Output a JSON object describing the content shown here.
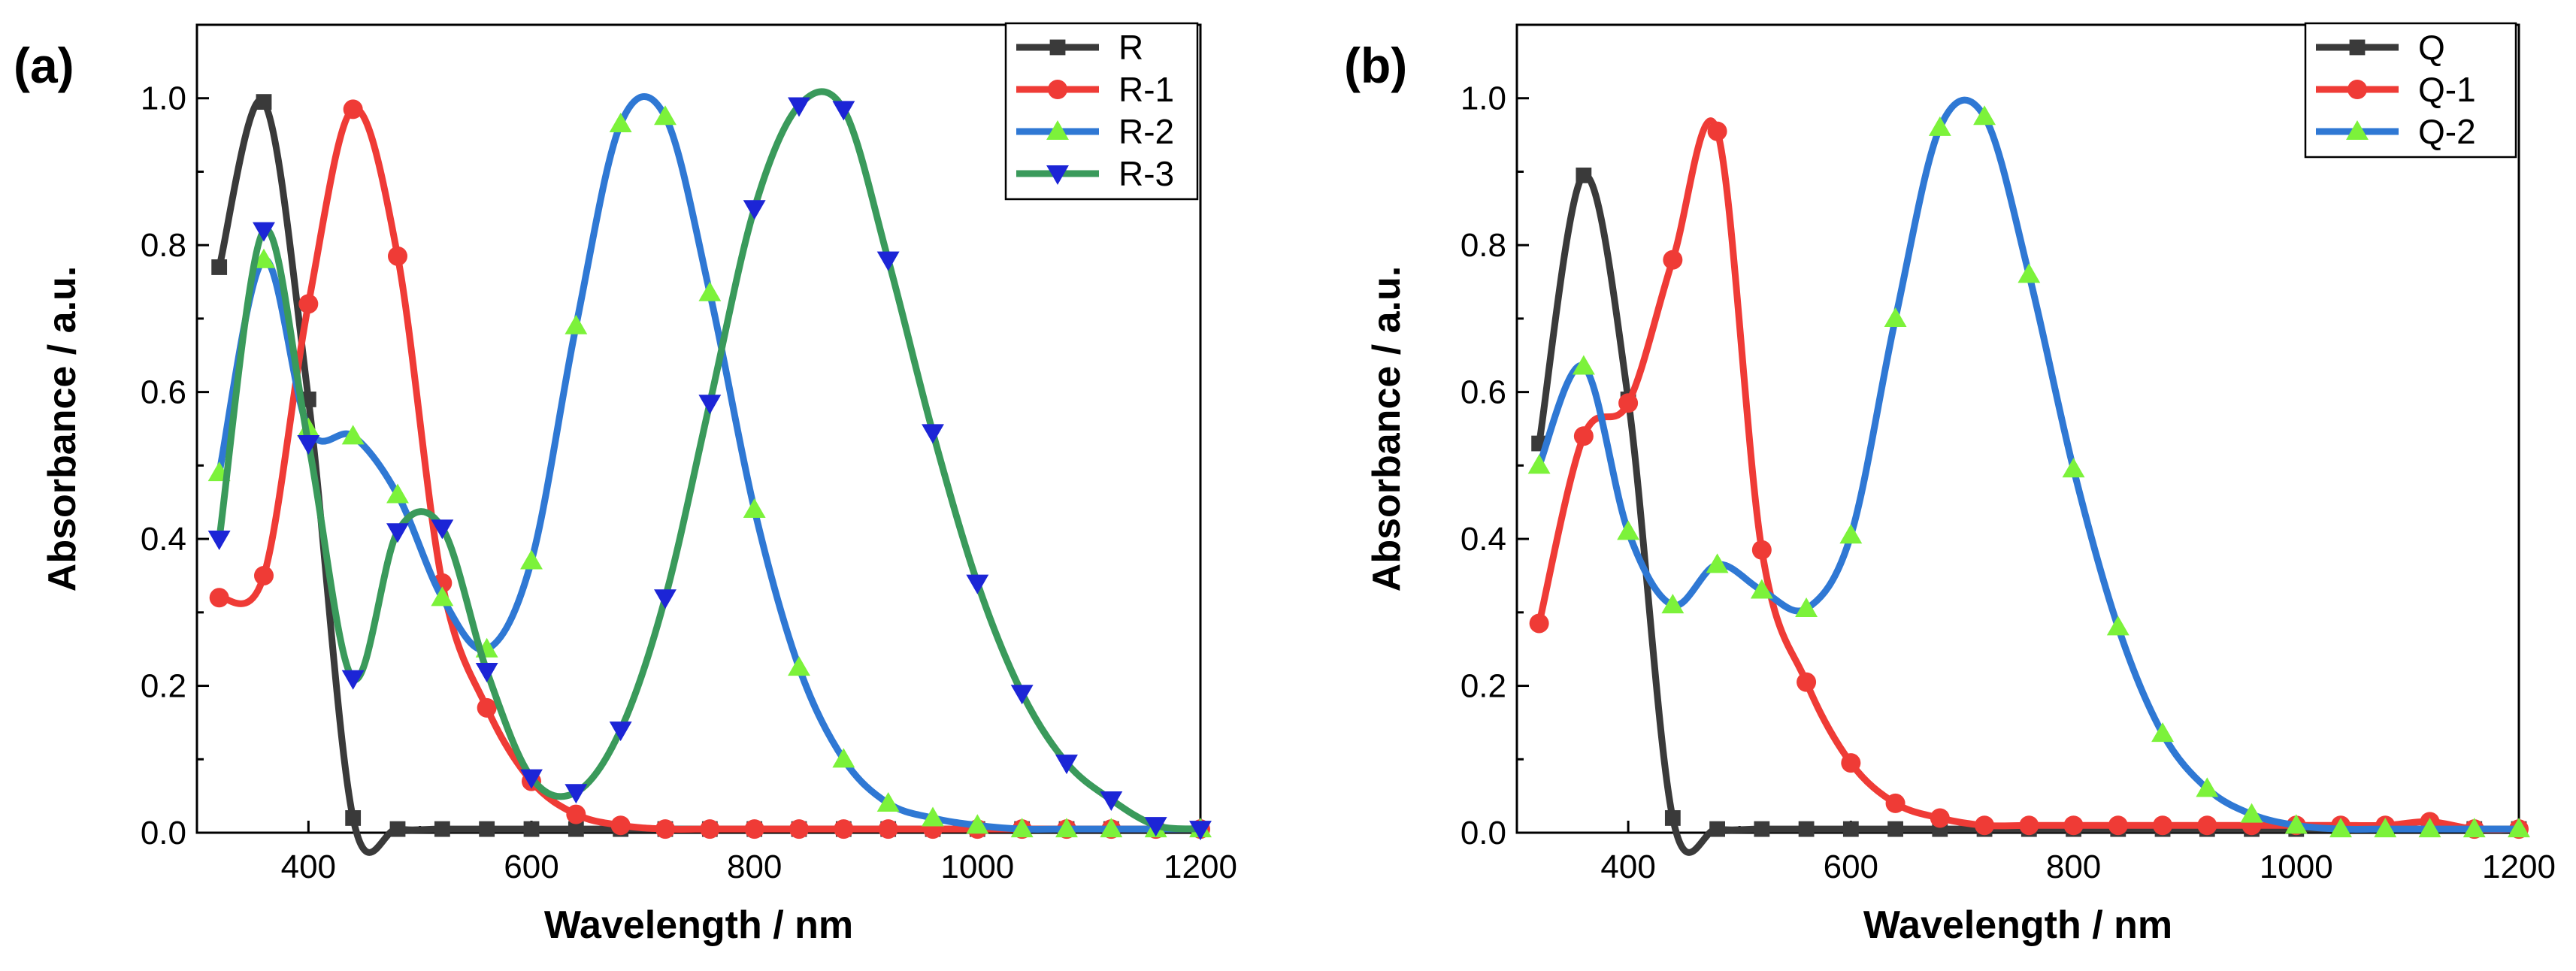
{
  "colors": {
    "R": "#3a3a3a",
    "R-1": "#ef3b36",
    "R-2": "#2f78d4",
    "R-3": "#3a9a5b",
    "Q": "#3a3a3a",
    "Q-1": "#ef3b36",
    "Q-2": "#2f78d4",
    "marker_tri_up": "#7cf23a",
    "marker_tri_down": "#1c25d6"
  },
  "chart_data": [
    {
      "type": "line",
      "panel_label": "(a)",
      "xlabel": "Wavelength / nm",
      "ylabel": "Absorbance / a.u.",
      "xlim": [
        300,
        1200
      ],
      "ylim": [
        0,
        1.1
      ],
      "xticks": [
        "400",
        "600",
        "800",
        "1000",
        "1200"
      ],
      "yticks": [
        "0.0",
        "0.2",
        "0.4",
        "0.6",
        "0.8",
        "1.0"
      ],
      "legend_position": "top-right",
      "series": [
        {
          "name": "R",
          "marker": "square",
          "x": [
            320,
            360,
            400,
            440,
            480,
            520,
            560,
            600,
            640,
            680,
            720,
            760,
            800,
            840,
            880,
            920,
            960,
            1000,
            1040,
            1080,
            1120,
            1160,
            1200
          ],
          "values": [
            0.77,
            0.995,
            0.59,
            0.02,
            0.005,
            0.005,
            0.005,
            0.005,
            0.005,
            0.005,
            0.005,
            0.005,
            0.005,
            0.005,
            0.005,
            0.005,
            0.005,
            0.005,
            0.005,
            0.005,
            0.005,
            0.005,
            0.005
          ]
        },
        {
          "name": "R-1",
          "marker": "circle",
          "x": [
            320,
            360,
            400,
            440,
            480,
            520,
            560,
            600,
            640,
            680,
            720,
            760,
            800,
            840,
            880,
            920,
            960,
            1000,
            1040,
            1080,
            1120,
            1160,
            1200
          ],
          "values": [
            0.32,
            0.35,
            0.72,
            0.985,
            0.785,
            0.34,
            0.17,
            0.07,
            0.025,
            0.01,
            0.005,
            0.005,
            0.005,
            0.005,
            0.005,
            0.005,
            0.005,
            0.005,
            0.005,
            0.005,
            0.005,
            0.005,
            0.005
          ]
        },
        {
          "name": "R-2",
          "marker": "triangle-up",
          "x": [
            320,
            360,
            400,
            440,
            480,
            520,
            560,
            600,
            640,
            680,
            720,
            760,
            800,
            840,
            880,
            920,
            960,
            1000,
            1040,
            1080,
            1120,
            1160,
            1200
          ],
          "values": [
            0.49,
            0.78,
            0.55,
            0.54,
            0.46,
            0.32,
            0.25,
            0.37,
            0.69,
            0.965,
            0.975,
            0.735,
            0.44,
            0.225,
            0.1,
            0.04,
            0.02,
            0.01,
            0.005,
            0.005,
            0.005,
            0.005,
            0.005
          ]
        },
        {
          "name": "R-3",
          "marker": "triangle-down",
          "x": [
            320,
            360,
            400,
            440,
            480,
            520,
            560,
            600,
            640,
            680,
            720,
            760,
            800,
            840,
            880,
            920,
            960,
            1000,
            1040,
            1080,
            1120,
            1160,
            1200
          ],
          "values": [
            0.4,
            0.82,
            0.53,
            0.21,
            0.41,
            0.415,
            0.22,
            0.075,
            0.055,
            0.14,
            0.32,
            0.585,
            0.85,
            0.99,
            0.985,
            0.78,
            0.545,
            0.34,
            0.19,
            0.095,
            0.045,
            0.01,
            0.005
          ]
        }
      ]
    },
    {
      "type": "line",
      "panel_label": "(b)",
      "xlabel": "Wavelength / nm",
      "ylabel": "Absorbance / a.u.",
      "xlim": [
        300,
        1200
      ],
      "ylim": [
        0,
        1.1
      ],
      "xticks": [
        "400",
        "600",
        "800",
        "1000",
        "1200"
      ],
      "yticks": [
        "0.0",
        "0.2",
        "0.4",
        "0.6",
        "0.8",
        "1.0"
      ],
      "legend_position": "top-right",
      "series": [
        {
          "name": "Q",
          "marker": "square",
          "x": [
            320,
            360,
            400,
            440,
            480,
            520,
            560,
            600,
            640,
            680,
            720,
            760,
            800,
            840,
            880,
            920,
            960,
            1000,
            1040,
            1080,
            1120,
            1160,
            1200
          ],
          "values": [
            0.53,
            0.895,
            0.59,
            0.02,
            0.005,
            0.005,
            0.005,
            0.005,
            0.005,
            0.005,
            0.005,
            0.005,
            0.005,
            0.005,
            0.005,
            0.005,
            0.005,
            0.005,
            0.005,
            0.005,
            0.005,
            0.005,
            0.005
          ]
        },
        {
          "name": "Q-1",
          "marker": "circle",
          "x": [
            320,
            360,
            400,
            440,
            480,
            520,
            560,
            600,
            640,
            680,
            720,
            760,
            800,
            840,
            880,
            920,
            960,
            1000,
            1040,
            1080,
            1120,
            1160,
            1200
          ],
          "values": [
            0.285,
            0.54,
            0.585,
            0.78,
            0.955,
            0.385,
            0.205,
            0.095,
            0.04,
            0.02,
            0.01,
            0.01,
            0.01,
            0.01,
            0.01,
            0.01,
            0.01,
            0.01,
            0.01,
            0.01,
            0.015,
            0.005,
            0.005
          ]
        },
        {
          "name": "Q-2",
          "marker": "triangle-up",
          "x": [
            320,
            360,
            400,
            440,
            480,
            520,
            560,
            600,
            640,
            680,
            720,
            760,
            800,
            840,
            880,
            920,
            960,
            1000,
            1040,
            1080,
            1120,
            1160,
            1200
          ],
          "values": [
            0.5,
            0.635,
            0.41,
            0.31,
            0.365,
            0.33,
            0.305,
            0.405,
            0.7,
            0.96,
            0.975,
            0.76,
            0.495,
            0.28,
            0.135,
            0.06,
            0.025,
            0.01,
            0.005,
            0.005,
            0.005,
            0.005,
            0.005
          ]
        }
      ]
    }
  ]
}
